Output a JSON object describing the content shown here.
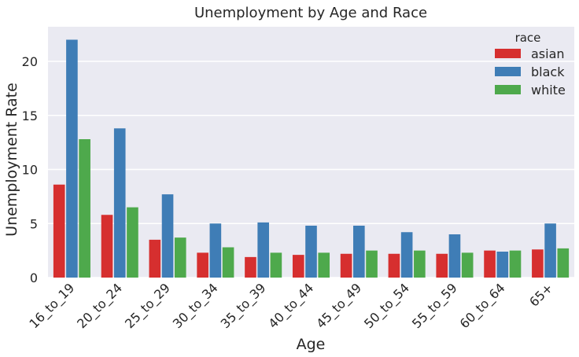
{
  "chart_data": {
    "type": "bar",
    "title": "Unemployment by Age and Race",
    "xlabel": "Age",
    "ylabel": "Unemployment Rate",
    "ylim": [
      0,
      23.2
    ],
    "yticks": [
      0,
      5,
      10,
      15,
      20
    ],
    "grid": true,
    "legend": {
      "title": "race",
      "placement": "top-right"
    },
    "categories": [
      "16_to_19",
      "20_to_24",
      "25_to_29",
      "30_to_34",
      "35_to_39",
      "40_to_44",
      "45_to_49",
      "50_to_54",
      "55_to_59",
      "60_to_64",
      "65+"
    ],
    "series": [
      {
        "name": "asian",
        "color": "#d62f2f",
        "values": [
          8.6,
          5.8,
          3.5,
          2.3,
          1.9,
          2.1,
          2.2,
          2.2,
          2.2,
          2.5,
          2.6
        ]
      },
      {
        "name": "black",
        "color": "#3f7db6",
        "values": [
          22.0,
          13.8,
          7.7,
          5.0,
          5.1,
          4.8,
          4.8,
          4.2,
          4.0,
          2.4,
          5.0
        ]
      },
      {
        "name": "white",
        "color": "#4ea94c",
        "values": [
          12.8,
          6.5,
          3.7,
          2.8,
          2.3,
          2.3,
          2.5,
          2.5,
          2.3,
          2.5,
          2.7
        ]
      }
    ]
  }
}
